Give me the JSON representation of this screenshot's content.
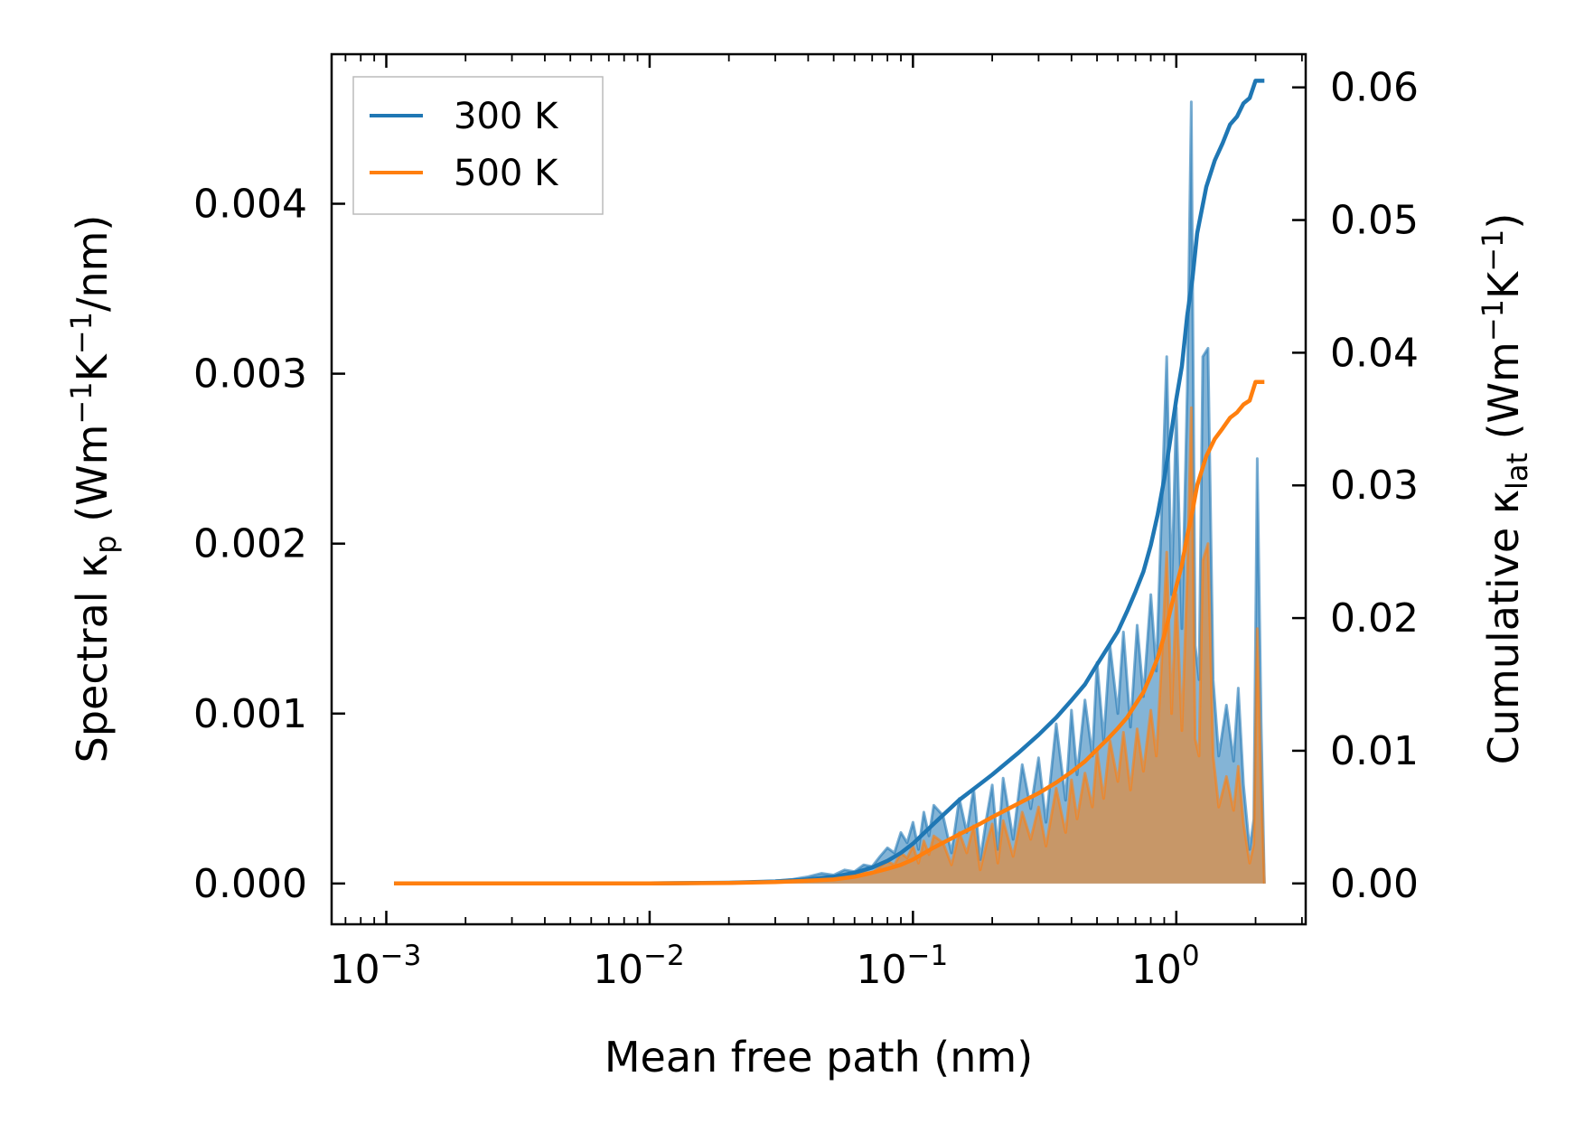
{
  "chart_data": {
    "type": "line",
    "title": "",
    "xlabel": "Mean free path (nm)",
    "ylabel_left": {
      "prefix": "Spectral κ",
      "sub": "p",
      "unit_open": " (Wm",
      "sup1": "−1",
      "unit_mid": "K",
      "sup2": "−1",
      "unit_close": "/nm)"
    },
    "ylabel_right": {
      "prefix": "Cumulative κ",
      "sub": "lat",
      "unit_open": " (Wm",
      "sup1": "−1",
      "unit_mid": "K",
      "sup2": "−1",
      "unit_close": ")"
    },
    "xscale": "log",
    "xlim": [
      0.00062,
      3.1
    ],
    "ylim_left": [
      -0.00024,
      0.00488
    ],
    "ylim_right": [
      -0.00308,
      0.0625
    ],
    "x_ticks": [
      {
        "value": 0.001,
        "base": "10",
        "exp": "−3"
      },
      {
        "value": 0.01,
        "base": "10",
        "exp": "−2"
      },
      {
        "value": 0.1,
        "base": "10",
        "exp": "−1"
      },
      {
        "value": 1,
        "base": "10",
        "exp": "0"
      }
    ],
    "y_ticks_left": [
      {
        "value": 0.0,
        "label": "0.000"
      },
      {
        "value": 0.001,
        "label": "0.001"
      },
      {
        "value": 0.002,
        "label": "0.002"
      },
      {
        "value": 0.003,
        "label": "0.003"
      },
      {
        "value": 0.004,
        "label": "0.004"
      }
    ],
    "y_ticks_right": [
      {
        "value": 0.0,
        "label": "0.00"
      },
      {
        "value": 0.01,
        "label": "0.01"
      },
      {
        "value": 0.02,
        "label": "0.02"
      },
      {
        "value": 0.03,
        "label": "0.03"
      },
      {
        "value": 0.04,
        "label": "0.04"
      },
      {
        "value": 0.05,
        "label": "0.05"
      },
      {
        "value": 0.06,
        "label": "0.06"
      }
    ],
    "legend": {
      "position": "top-left"
    },
    "series": [
      {
        "name": "300 K",
        "color": "#1f77b4",
        "fill_color": "#1f77b4",
        "spectral": [
          [
            0.00107,
            0
          ],
          [
            0.002,
            0
          ],
          [
            0.005,
            0
          ],
          [
            0.01,
            0
          ],
          [
            0.015,
            3e-06
          ],
          [
            0.02,
            6e-06
          ],
          [
            0.025,
            1e-05
          ],
          [
            0.03,
            1.6e-05
          ],
          [
            0.035,
            2.5e-05
          ],
          [
            0.04,
            4e-05
          ],
          [
            0.045,
            6e-05
          ],
          [
            0.05,
            5e-05
          ],
          [
            0.055,
            8e-05
          ],
          [
            0.06,
            7e-05
          ],
          [
            0.065,
            0.00011
          ],
          [
            0.07,
            0.0001
          ],
          [
            0.075,
            0.00016
          ],
          [
            0.08,
            0.00021
          ],
          [
            0.085,
            0.00018
          ],
          [
            0.09,
            0.0003
          ],
          [
            0.095,
            0.00024
          ],
          [
            0.1,
            0.00036
          ],
          [
            0.105,
            0.0002
          ],
          [
            0.11,
            0.00042
          ],
          [
            0.115,
            0.00028
          ],
          [
            0.12,
            0.00046
          ],
          [
            0.13,
            0.0004
          ],
          [
            0.14,
            0.00018
          ],
          [
            0.15,
            0.0005
          ],
          [
            0.16,
            0.0003
          ],
          [
            0.17,
            0.00056
          ],
          [
            0.18,
            0.00014
          ],
          [
            0.19,
            0.00038
          ],
          [
            0.2,
            0.00058
          ],
          [
            0.21,
            0.0002
          ],
          [
            0.22,
            0.00062
          ],
          [
            0.24,
            0.00026
          ],
          [
            0.26,
            0.0007
          ],
          [
            0.28,
            0.00044
          ],
          [
            0.3,
            0.00074
          ],
          [
            0.32,
            0.00036
          ],
          [
            0.35,
            0.00094
          ],
          [
            0.38,
            0.00049
          ],
          [
            0.4,
            0.00102
          ],
          [
            0.42,
            0.00064
          ],
          [
            0.45,
            0.00108
          ],
          [
            0.48,
            0.00075
          ],
          [
            0.5,
            0.0013
          ],
          [
            0.53,
            0.00084
          ],
          [
            0.56,
            0.0014
          ],
          [
            0.6,
            0.001
          ],
          [
            0.63,
            0.00148
          ],
          [
            0.67,
            0.00092
          ],
          [
            0.71,
            0.00152
          ],
          [
            0.75,
            0.0011
          ],
          [
            0.8,
            0.0017
          ],
          [
            0.84,
            0.00125
          ],
          [
            0.88,
            0.0022
          ],
          [
            0.92,
            0.0031
          ],
          [
            0.96,
            0.0017
          ],
          [
            1.0,
            0.0028
          ],
          [
            1.05,
            0.0015
          ],
          [
            1.1,
            0.0029
          ],
          [
            1.14,
            0.0046
          ],
          [
            1.18,
            0.0014
          ],
          [
            1.22,
            0.0012
          ],
          [
            1.26,
            0.0031
          ],
          [
            1.32,
            0.00315
          ],
          [
            1.38,
            0.0012
          ],
          [
            1.45,
            0.00075
          ],
          [
            1.55,
            0.00105
          ],
          [
            1.65,
            0.00072
          ],
          [
            1.72,
            0.00115
          ],
          [
            1.8,
            0.00058
          ],
          [
            1.9,
            0.0002
          ],
          [
            1.97,
            0.00038
          ],
          [
            2.03,
            0.0025
          ],
          [
            2.1,
            0.00095
          ],
          [
            2.16,
            0.0
          ]
        ],
        "cumulative": [
          [
            0.00107,
            0
          ],
          [
            0.005,
            0
          ],
          [
            0.01,
            0
          ],
          [
            0.02,
            5e-05
          ],
          [
            0.03,
            0.00015
          ],
          [
            0.04,
            0.0003
          ],
          [
            0.05,
            0.0005
          ],
          [
            0.06,
            0.0008
          ],
          [
            0.07,
            0.0012
          ],
          [
            0.08,
            0.0017
          ],
          [
            0.09,
            0.0023
          ],
          [
            0.1,
            0.003
          ],
          [
            0.12,
            0.0045
          ],
          [
            0.15,
            0.0063
          ],
          [
            0.18,
            0.0075
          ],
          [
            0.2,
            0.0082
          ],
          [
            0.25,
            0.0098
          ],
          [
            0.3,
            0.0112
          ],
          [
            0.35,
            0.0125
          ],
          [
            0.4,
            0.0138
          ],
          [
            0.45,
            0.015
          ],
          [
            0.5,
            0.0165
          ],
          [
            0.55,
            0.0178
          ],
          [
            0.6,
            0.019
          ],
          [
            0.65,
            0.0205
          ],
          [
            0.7,
            0.022
          ],
          [
            0.75,
            0.0235
          ],
          [
            0.8,
            0.0255
          ],
          [
            0.85,
            0.0278
          ],
          [
            0.9,
            0.0305
          ],
          [
            0.95,
            0.0335
          ],
          [
            1.0,
            0.0365
          ],
          [
            1.05,
            0.039
          ],
          [
            1.1,
            0.0428
          ],
          [
            1.15,
            0.0455
          ],
          [
            1.2,
            0.049
          ],
          [
            1.3,
            0.0525
          ],
          [
            1.4,
            0.0545
          ],
          [
            1.5,
            0.0558
          ],
          [
            1.6,
            0.0572
          ],
          [
            1.7,
            0.0578
          ],
          [
            1.8,
            0.0588
          ],
          [
            1.9,
            0.0592
          ],
          [
            2.0,
            0.0605
          ],
          [
            2.16,
            0.0605
          ]
        ]
      },
      {
        "name": "500 K",
        "color": "#ff7f0e",
        "fill_color": "#ff7f0e",
        "spectral": [
          [
            0.00107,
            0
          ],
          [
            0.002,
            0
          ],
          [
            0.005,
            0
          ],
          [
            0.01,
            0
          ],
          [
            0.015,
            2e-06
          ],
          [
            0.02,
            4e-06
          ],
          [
            0.025,
            7e-06
          ],
          [
            0.03,
            1e-05
          ],
          [
            0.035,
            1.5e-05
          ],
          [
            0.04,
            2.4e-05
          ],
          [
            0.045,
            3.6e-05
          ],
          [
            0.05,
            3e-05
          ],
          [
            0.055,
            5e-05
          ],
          [
            0.06,
            4.2e-05
          ],
          [
            0.065,
            6.6e-05
          ],
          [
            0.07,
            6e-05
          ],
          [
            0.075,
            0.0001
          ],
          [
            0.08,
            0.00013
          ],
          [
            0.085,
            0.00011
          ],
          [
            0.09,
            0.00018
          ],
          [
            0.095,
            0.00015
          ],
          [
            0.1,
            0.00022
          ],
          [
            0.105,
            0.00012
          ],
          [
            0.11,
            0.00025
          ],
          [
            0.115,
            0.00017
          ],
          [
            0.12,
            0.00028
          ],
          [
            0.13,
            0.00024
          ],
          [
            0.14,
            0.00011
          ],
          [
            0.15,
            0.0003
          ],
          [
            0.16,
            0.00018
          ],
          [
            0.17,
            0.00034
          ],
          [
            0.18,
            8e-05
          ],
          [
            0.19,
            0.00023
          ],
          [
            0.2,
            0.00035
          ],
          [
            0.21,
            0.00012
          ],
          [
            0.22,
            0.00037
          ],
          [
            0.24,
            0.00016
          ],
          [
            0.26,
            0.00042
          ],
          [
            0.28,
            0.00026
          ],
          [
            0.3,
            0.00045
          ],
          [
            0.32,
            0.00022
          ],
          [
            0.35,
            0.00056
          ],
          [
            0.38,
            0.0003
          ],
          [
            0.4,
            0.00061
          ],
          [
            0.42,
            0.00038
          ],
          [
            0.45,
            0.00065
          ],
          [
            0.48,
            0.00045
          ],
          [
            0.5,
            0.00078
          ],
          [
            0.53,
            0.0005
          ],
          [
            0.56,
            0.00084
          ],
          [
            0.6,
            0.0006
          ],
          [
            0.63,
            0.00089
          ],
          [
            0.67,
            0.00055
          ],
          [
            0.71,
            0.00091
          ],
          [
            0.75,
            0.00066
          ],
          [
            0.8,
            0.00102
          ],
          [
            0.84,
            0.00075
          ],
          [
            0.88,
            0.0013
          ],
          [
            0.92,
            0.00195
          ],
          [
            0.96,
            0.001
          ],
          [
            1.0,
            0.0017
          ],
          [
            1.05,
            0.0009
          ],
          [
            1.1,
            0.0018
          ],
          [
            1.14,
            0.0028
          ],
          [
            1.18,
            0.00085
          ],
          [
            1.22,
            0.00075
          ],
          [
            1.26,
            0.0019
          ],
          [
            1.32,
            0.002
          ],
          [
            1.38,
            0.00075
          ],
          [
            1.45,
            0.00045
          ],
          [
            1.55,
            0.00063
          ],
          [
            1.65,
            0.00043
          ],
          [
            1.72,
            0.00069
          ],
          [
            1.8,
            0.00035
          ],
          [
            1.9,
            0.00012
          ],
          [
            1.97,
            0.00023
          ],
          [
            2.03,
            0.0015
          ],
          [
            2.1,
            0.00057
          ],
          [
            2.16,
            0.0
          ]
        ],
        "cumulative": [
          [
            0.00107,
            0
          ],
          [
            0.005,
            0
          ],
          [
            0.01,
            0
          ],
          [
            0.02,
            3e-05
          ],
          [
            0.03,
            0.0001
          ],
          [
            0.04,
            0.0002
          ],
          [
            0.05,
            0.0003
          ],
          [
            0.06,
            0.0005
          ],
          [
            0.07,
            0.0008
          ],
          [
            0.08,
            0.0011
          ],
          [
            0.09,
            0.0014
          ],
          [
            0.1,
            0.0018
          ],
          [
            0.12,
            0.0027
          ],
          [
            0.15,
            0.0037
          ],
          [
            0.18,
            0.0045
          ],
          [
            0.2,
            0.005
          ],
          [
            0.25,
            0.006
          ],
          [
            0.3,
            0.0068
          ],
          [
            0.35,
            0.0076
          ],
          [
            0.4,
            0.0084
          ],
          [
            0.45,
            0.0092
          ],
          [
            0.5,
            0.0101
          ],
          [
            0.55,
            0.0109
          ],
          [
            0.6,
            0.0117
          ],
          [
            0.65,
            0.0125
          ],
          [
            0.7,
            0.0135
          ],
          [
            0.75,
            0.0144
          ],
          [
            0.8,
            0.0157
          ],
          [
            0.85,
            0.017
          ],
          [
            0.9,
            0.0187
          ],
          [
            0.95,
            0.0206
          ],
          [
            1.0,
            0.0224
          ],
          [
            1.05,
            0.024
          ],
          [
            1.1,
            0.0262
          ],
          [
            1.15,
            0.028
          ],
          [
            1.2,
            0.03
          ],
          [
            1.3,
            0.0322
          ],
          [
            1.4,
            0.0335
          ],
          [
            1.5,
            0.0343
          ],
          [
            1.6,
            0.0351
          ],
          [
            1.7,
            0.0355
          ],
          [
            1.8,
            0.0361
          ],
          [
            1.9,
            0.0364
          ],
          [
            2.0,
            0.0378
          ],
          [
            2.16,
            0.0378
          ]
        ]
      }
    ]
  }
}
